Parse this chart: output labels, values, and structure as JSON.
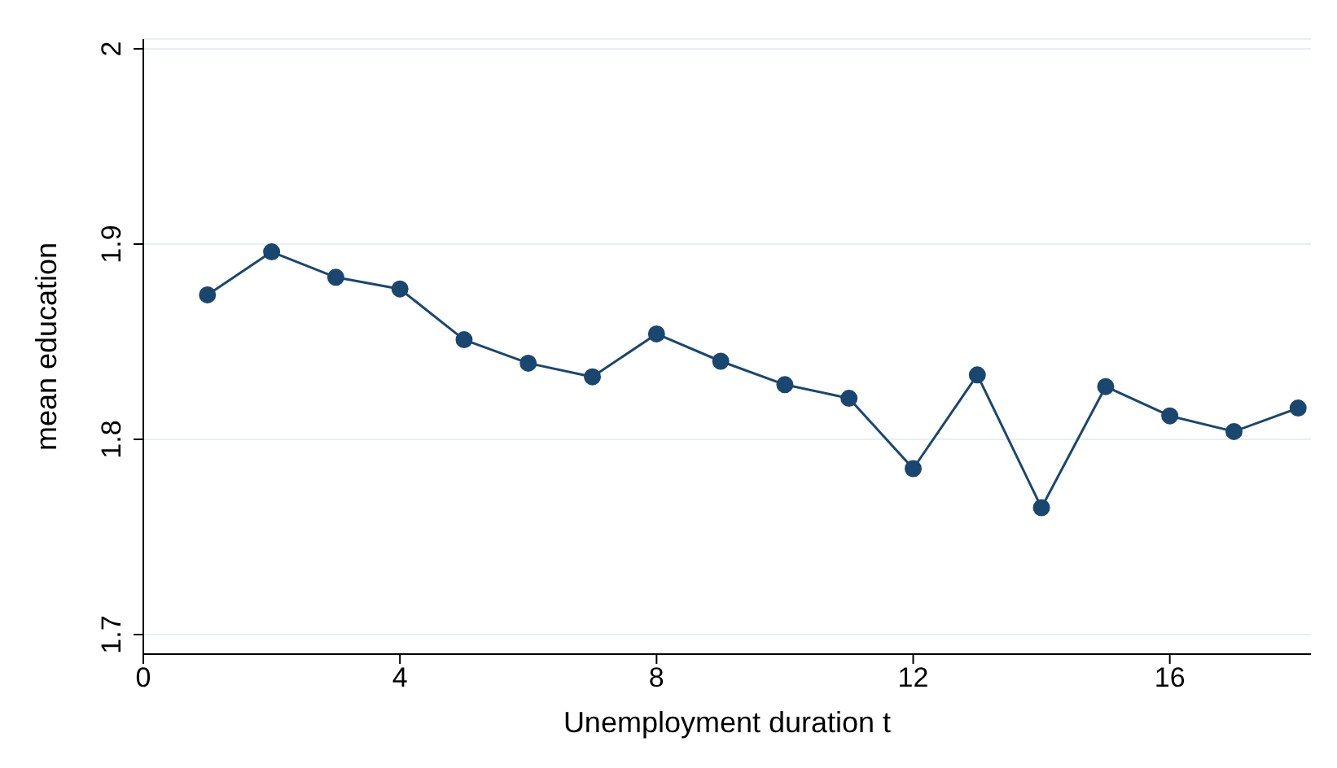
{
  "chart_data": {
    "type": "line",
    "xlabel": "Unemployment duration t",
    "ylabel": "mean education",
    "x": [
      1,
      2,
      3,
      4,
      5,
      6,
      7,
      8,
      9,
      10,
      11,
      12,
      13,
      14,
      15,
      16,
      17,
      18
    ],
    "series": [
      {
        "color": "#1a476f",
        "values": [
          1.874,
          1.896,
          1.883,
          1.877,
          1.851,
          1.839,
          1.832,
          1.854,
          1.84,
          1.828,
          1.821,
          1.785,
          1.833,
          1.765,
          1.827,
          1.812,
          1.804,
          1.816
        ]
      }
    ],
    "xlim": [
      0,
      18.2
    ],
    "xticks": [
      0,
      4,
      8,
      12,
      16
    ],
    "ylim": [
      1.69,
      2.005
    ],
    "yticks": [
      1.7,
      1.8,
      1.9,
      2
    ],
    "grid": "y",
    "marker": "circle",
    "line_style": "solid"
  }
}
